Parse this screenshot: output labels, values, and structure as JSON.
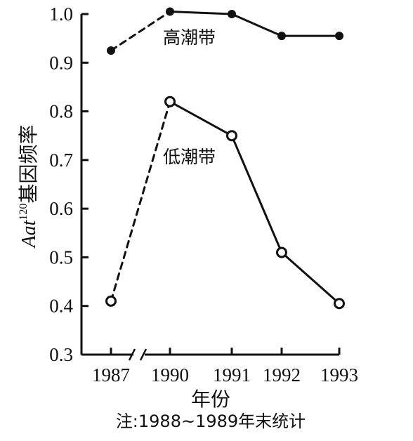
{
  "chart_data": {
    "type": "line",
    "ylabel": {
      "italic": "Aat",
      "sup": "120",
      "text": "基因频率"
    },
    "xlabel": "年份",
    "note": "注:1988~1989年末统计",
    "ylim": [
      0.3,
      1.0
    ],
    "yticks": [
      "0.3",
      "0.4",
      "0.5",
      "0.6",
      "0.7",
      "0.8",
      "0.9",
      "1.0"
    ],
    "categories": [
      "1987",
      "1990",
      "1991",
      "1992",
      "1993"
    ],
    "axis_break_between": [
      "1987",
      "1990"
    ],
    "series": [
      {
        "name": "高潮带",
        "marker": "filled",
        "values": [
          0.925,
          1.005,
          1.0,
          0.955,
          0.955
        ],
        "dashed_segment": [
          0,
          1
        ]
      },
      {
        "name": "低潮带",
        "marker": "open",
        "values": [
          0.41,
          0.82,
          0.75,
          0.51,
          0.405
        ],
        "dashed_segment": [
          0,
          1
        ]
      }
    ]
  }
}
